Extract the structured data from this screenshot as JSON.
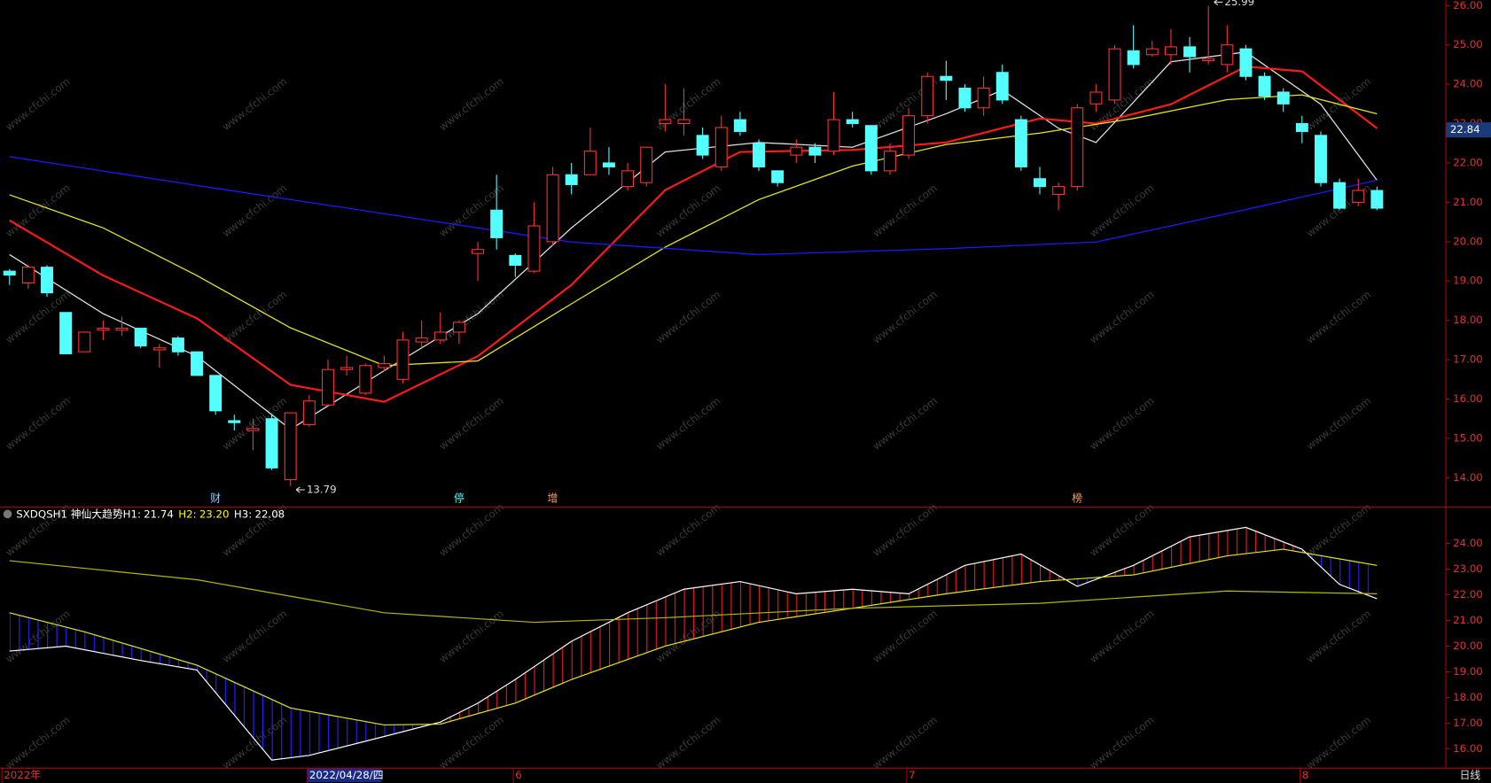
{
  "chart_data": [
    {
      "type": "candlestick",
      "ylim": [
        13.27,
        26.14
      ],
      "yticks": [
        {
          "value": 26,
          "label": "26.00"
        },
        {
          "value": 25,
          "label": "25.00"
        },
        {
          "value": 24,
          "label": "24.00"
        },
        {
          "value": 23,
          "label": "23.00"
        },
        {
          "value": 22,
          "label": "22.00"
        },
        {
          "value": 21,
          "label": "21.00"
        },
        {
          "value": 20,
          "label": "20.00"
        },
        {
          "value": 19,
          "label": "19.00"
        },
        {
          "value": 18,
          "label": "18.00"
        },
        {
          "value": 17,
          "label": "17.00"
        },
        {
          "value": 16,
          "label": "16.00"
        },
        {
          "value": 15,
          "label": "15.00"
        },
        {
          "value": 14,
          "label": "14.00"
        }
      ],
      "up_color": "#ff3232",
      "down_color": "#54ffff",
      "open": [
        19.25,
        18.95,
        19.35,
        18.2,
        17.2,
        17.75,
        17.75,
        17.8,
        17.25,
        17.55,
        17.2,
        16.6,
        15.45,
        15.2,
        15.5,
        13.95,
        15.35,
        15.85,
        16.75,
        16.15,
        16.8,
        16.5,
        17.45,
        17.5,
        17.7,
        19.7,
        20.8,
        19.65,
        19.25,
        20.0,
        21.7,
        21.7,
        22.0,
        21.4,
        21.5,
        23.0,
        23.0,
        22.7,
        21.9,
        23.1,
        22.5,
        21.8,
        22.2,
        22.4,
        22.3,
        23.1,
        22.95,
        21.8,
        22.2,
        23.2,
        24.2,
        23.9,
        23.4,
        24.3,
        23.1,
        21.6,
        21.2,
        21.4,
        23.5,
        23.6,
        24.85,
        24.75,
        24.75,
        24.95,
        24.6,
        24.5,
        24.9,
        24.2,
        23.8,
        23.0,
        22.7,
        21.5,
        21.0,
        21.3
      ],
      "high": [
        19.3,
        19.4,
        19.4,
        18.2,
        17.7,
        18.0,
        18.1,
        17.8,
        17.4,
        17.6,
        17.2,
        16.6,
        15.6,
        15.5,
        15.6,
        15.65,
        16.1,
        17.0,
        17.1,
        16.9,
        17.1,
        17.7,
        18.0,
        18.2,
        18.0,
        20.0,
        21.7,
        19.7,
        21.0,
        21.9,
        22.0,
        22.9,
        22.4,
        22.0,
        22.4,
        24.0,
        23.9,
        22.9,
        23.2,
        23.3,
        22.6,
        21.8,
        22.6,
        22.5,
        23.8,
        23.3,
        22.95,
        22.5,
        23.4,
        24.3,
        24.6,
        24.0,
        24.2,
        24.5,
        23.2,
        21.9,
        21.5,
        23.5,
        24.0,
        25.0,
        25.5,
        25.1,
        25.4,
        25.2,
        25.99,
        25.5,
        25.0,
        24.3,
        23.9,
        23.2,
        22.8,
        21.6,
        21.6,
        21.4
      ],
      "low": [
        18.9,
        18.8,
        18.6,
        17.15,
        17.2,
        17.5,
        17.6,
        17.3,
        16.8,
        17.1,
        16.6,
        15.6,
        15.2,
        14.7,
        14.2,
        13.79,
        15.3,
        15.8,
        16.6,
        16.1,
        16.7,
        16.4,
        17.3,
        17.4,
        17.4,
        19.0,
        19.8,
        19.1,
        19.2,
        19.9,
        21.2,
        21.7,
        21.7,
        21.3,
        21.4,
        22.8,
        22.7,
        22.1,
        21.8,
        22.7,
        21.8,
        21.4,
        22.0,
        22.0,
        22.2,
        22.9,
        21.7,
        21.7,
        22.1,
        23.0,
        23.6,
        23.3,
        23.2,
        23.5,
        21.8,
        21.2,
        20.8,
        21.3,
        23.3,
        23.5,
        24.4,
        24.7,
        24.5,
        24.3,
        24.5,
        24.3,
        24.1,
        23.6,
        23.3,
        22.5,
        21.4,
        20.8,
        20.9,
        20.8
      ],
      "close": [
        19.15,
        19.35,
        18.7,
        17.15,
        17.7,
        17.8,
        17.8,
        17.35,
        17.3,
        17.2,
        16.6,
        15.7,
        15.4,
        15.25,
        14.25,
        15.65,
        15.95,
        16.75,
        16.8,
        16.85,
        16.9,
        17.5,
        17.55,
        17.7,
        17.95,
        19.8,
        20.1,
        19.4,
        20.4,
        21.7,
        21.45,
        22.3,
        21.9,
        21.8,
        22.4,
        23.1,
        23.1,
        22.2,
        22.9,
        22.8,
        21.9,
        21.5,
        22.4,
        22.2,
        23.1,
        23.0,
        21.8,
        22.3,
        23.2,
        24.2,
        24.1,
        23.4,
        23.9,
        23.6,
        21.9,
        21.4,
        21.4,
        23.4,
        23.8,
        24.9,
        24.5,
        24.9,
        24.95,
        24.7,
        24.65,
        25.0,
        24.2,
        23.7,
        23.5,
        22.8,
        21.5,
        20.85,
        21.3,
        20.85
      ],
      "lines": [
        {
          "color": "#dddddd",
          "x": [
            0,
            5,
            10,
            15,
            20,
            25,
            30,
            35,
            40,
            45,
            50,
            53,
            56,
            58,
            62,
            66,
            70,
            73
          ],
          "values": [
            19.67,
            18.17,
            17.09,
            15.23,
            16.72,
            18.17,
            20.35,
            22.28,
            22.52,
            22.4,
            23.25,
            23.85,
            22.88,
            22.52,
            24.57,
            24.82,
            23.49,
            21.56
          ]
        },
        {
          "color": "#ff1a1a",
          "width": 2,
          "x": [
            0,
            5,
            10,
            15,
            20,
            25,
            30,
            35,
            39,
            45,
            50,
            55,
            58,
            62,
            66,
            69,
            73
          ],
          "values": [
            20.54,
            19.14,
            18.05,
            16.36,
            15.93,
            17.09,
            18.9,
            21.31,
            22.28,
            22.33,
            22.52,
            23.13,
            23.0,
            23.49,
            24.45,
            24.33,
            22.88
          ]
        },
        {
          "color": "#e6e61a",
          "x": [
            0,
            5,
            10,
            15,
            20,
            25,
            30,
            35,
            40,
            45,
            50,
            55,
            60,
            65,
            69,
            73
          ],
          "values": [
            21.19,
            20.35,
            19.14,
            17.81,
            16.85,
            16.97,
            18.42,
            19.86,
            21.07,
            21.92,
            22.47,
            22.76,
            23.13,
            23.61,
            23.73,
            23.25
          ]
        },
        {
          "color": "#1a1aff",
          "x": [
            0,
            10,
            20,
            30,
            40,
            50,
            58,
            65,
            73
          ],
          "values": [
            22.16,
            21.43,
            20.71,
            19.99,
            19.67,
            19.82,
            19.99,
            20.71,
            21.56
          ]
        }
      ],
      "last_price": 22.84,
      "high_mark": {
        "value": 25.99,
        "index": 64
      },
      "low_mark": {
        "value": 13.79,
        "index": 15
      },
      "markers": [
        {
          "label": "财",
          "index": 11,
          "color": "#8fd0ff"
        },
        {
          "label": "停",
          "index": 24,
          "color": "#54ffff"
        },
        {
          "label": "增",
          "index": 29,
          "color": "#ff9a60"
        },
        {
          "label": "榜",
          "index": 57,
          "color": "#ff9a60"
        }
      ],
      "watermark": "www.cfchi.com"
    },
    {
      "type": "indicator",
      "ylim": [
        15.26,
        24.89
      ],
      "yticks": [
        {
          "value": 24,
          "label": "24.00"
        },
        {
          "value": 23,
          "label": "23.00"
        },
        {
          "value": 22,
          "label": "22.00"
        },
        {
          "value": 21,
          "label": "21.00"
        },
        {
          "value": 20,
          "label": "20.00"
        },
        {
          "value": 19,
          "label": "19.00"
        },
        {
          "value": 18,
          "label": "18.00"
        },
        {
          "value": 17,
          "label": "17.00"
        },
        {
          "value": 16,
          "label": "16.00"
        }
      ],
      "title": "SXDQSH1 神仙大趋势",
      "items": [
        {
          "name": "H1:",
          "value": 21.74,
          "value_label": "21.74",
          "color": "#ffffff"
        },
        {
          "name": "H2:",
          "value": 23.2,
          "value_label": "23.20",
          "color": "#ffff00"
        },
        {
          "name": "H3:",
          "value": 22.08,
          "value_label": "22.08",
          "color": "#ffffff"
        }
      ],
      "series": [
        {
          "color": "#ffffff",
          "x": [
            0,
            3,
            7,
            10,
            14,
            16,
            20,
            23,
            25,
            27,
            30,
            33,
            36,
            39,
            42,
            45,
            48,
            51,
            54,
            57,
            60,
            63,
            66,
            69,
            71,
            73
          ],
          "values": [
            19.81,
            20.0,
            19.44,
            19.07,
            15.56,
            15.74,
            16.48,
            17.04,
            17.78,
            18.7,
            20.19,
            21.3,
            22.22,
            22.52,
            22.04,
            22.22,
            22.04,
            23.15,
            23.59,
            22.33,
            23.15,
            24.26,
            24.63,
            23.78,
            22.41,
            21.85
          ]
        },
        {
          "color": "#e6e61a",
          "x": [
            0,
            4,
            10,
            15,
            20,
            23,
            27,
            30,
            35,
            40,
            45,
            50,
            55,
            60,
            65,
            68,
            73
          ],
          "values": [
            21.3,
            20.56,
            19.26,
            17.59,
            16.93,
            16.96,
            17.78,
            18.7,
            20.0,
            20.93,
            21.48,
            22.04,
            22.52,
            22.78,
            23.52,
            23.78,
            23.15
          ]
        },
        {
          "color": "#b8b800",
          "x": [
            0,
            10,
            20,
            28,
            35,
            45,
            55,
            65,
            73
          ],
          "values": [
            23.33,
            22.59,
            21.3,
            20.93,
            21.11,
            21.48,
            21.67,
            22.15,
            22.04
          ]
        }
      ],
      "up_color": "#e01a1a",
      "down_color": "#2020ff",
      "x_labels": [
        {
          "label": "2022年",
          "index": 0
        },
        {
          "label": "2022/04/28/四",
          "index": 16,
          "highlight": true
        },
        {
          "label": "6",
          "index": 27
        },
        {
          "label": "7",
          "index": 48
        },
        {
          "label": "8",
          "index": 69
        }
      ],
      "period": "日线"
    }
  ]
}
